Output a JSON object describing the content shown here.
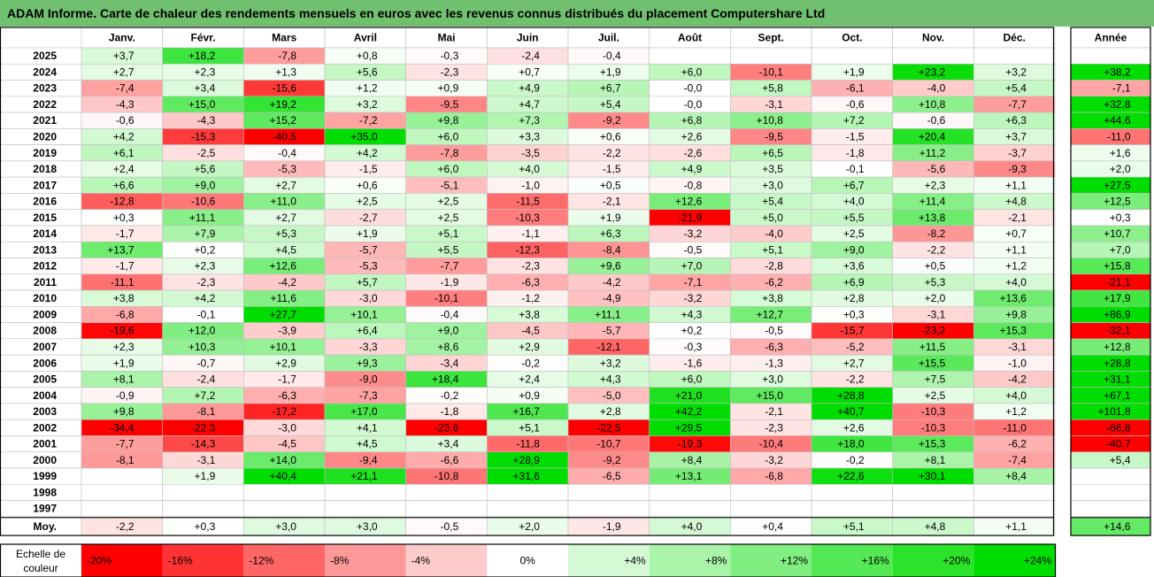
{
  "title": "ADAM Informe. Carte de chaleur des rendements mensuels en euros avec les revenus connus distribués du placement Computershare Ltd",
  "chart_data": {
    "type": "heatmap",
    "columns": [
      "Janv.",
      "Févr.",
      "Mars",
      "Avril",
      "Mai",
      "Juin",
      "Juil.",
      "Août",
      "Sept.",
      "Oct.",
      "Nov.",
      "Déc."
    ],
    "year_header": "Année",
    "rows": [
      {
        "label": "2025",
        "values": [
          3.7,
          18.2,
          -7.8,
          0.8,
          -0.3,
          -2.4,
          -0.4,
          null,
          null,
          null,
          null,
          null
        ],
        "year": null
      },
      {
        "label": "2024",
        "values": [
          2.7,
          2.3,
          1.3,
          5.6,
          -2.3,
          0.7,
          1.9,
          6.0,
          -10.1,
          1.9,
          23.2,
          3.2
        ],
        "year": 38.2
      },
      {
        "label": "2023",
        "values": [
          -7.4,
          3.4,
          -15.6,
          1.2,
          0.9,
          4.9,
          6.7,
          -0.0,
          5.8,
          -6.1,
          -4.0,
          5.4
        ],
        "year": -7.1
      },
      {
        "label": "2022",
        "values": [
          -4.3,
          15.0,
          19.2,
          3.2,
          -9.5,
          4.7,
          5.4,
          -0.0,
          -3.1,
          -0.6,
          10.8,
          -7.7
        ],
        "year": 32.8
      },
      {
        "label": "2021",
        "values": [
          -0.6,
          -4.3,
          15.2,
          -7.2,
          9.8,
          7.3,
          -9.2,
          6.8,
          10.8,
          7.2,
          -0.6,
          6.3
        ],
        "year": 44.6
      },
      {
        "label": "2020",
        "values": [
          4.2,
          -15.3,
          -40.5,
          35.0,
          6.0,
          3.3,
          0.6,
          2.6,
          -9.5,
          -1.5,
          20.4,
          3.7
        ],
        "year": -11.0
      },
      {
        "label": "2019",
        "values": [
          6.1,
          -2.5,
          -0.4,
          4.2,
          -7.8,
          -3.5,
          -2.2,
          -2.6,
          6.5,
          -1.8,
          11.2,
          -3.7
        ],
        "year": 1.6
      },
      {
        "label": "2018",
        "values": [
          2.4,
          5.6,
          -5.3,
          -1.5,
          6.0,
          4.0,
          -1.5,
          4.9,
          3.5,
          -0.1,
          -5.6,
          -9.3
        ],
        "year": 2.0
      },
      {
        "label": "2017",
        "values": [
          6.6,
          9.0,
          2.7,
          0.6,
          -5.1,
          -1.0,
          0.5,
          -0.8,
          3.0,
          6.7,
          2.3,
          1.1
        ],
        "year": 27.5
      },
      {
        "label": "2016",
        "values": [
          -12.8,
          -10.6,
          11.0,
          2.5,
          2.5,
          -11.5,
          -2.1,
          12.6,
          5.4,
          4.0,
          11.4,
          4.8
        ],
        "year": 12.5
      },
      {
        "label": "2015",
        "values": [
          0.3,
          11.1,
          2.7,
          -2.7,
          2.5,
          -10.3,
          1.9,
          -21.9,
          5.0,
          5.5,
          13.8,
          -2.1
        ],
        "year": 0.3
      },
      {
        "label": "2014",
        "values": [
          -1.7,
          7.9,
          5.3,
          1.9,
          5.1,
          -1.1,
          6.3,
          -3.2,
          -4.0,
          2.5,
          -8.2,
          0.7
        ],
        "year": 10.7
      },
      {
        "label": "2013",
        "values": [
          13.7,
          0.2,
          4.5,
          -5.7,
          5.5,
          -12.3,
          -8.4,
          -0.5,
          5.1,
          9.0,
          -2.2,
          1.1
        ],
        "year": 7.0
      },
      {
        "label": "2012",
        "values": [
          -1.7,
          2.3,
          12.6,
          -5.3,
          -7.7,
          -2.3,
          9.6,
          7.0,
          -2.8,
          3.6,
          0.5,
          1.2
        ],
        "year": 15.8
      },
      {
        "label": "2011",
        "values": [
          -11.1,
          -2.3,
          -4.2,
          5.7,
          -1.9,
          -6.3,
          -4.2,
          -7.1,
          -6.2,
          6.9,
          5.3,
          4.0
        ],
        "year": -21.1
      },
      {
        "label": "2010",
        "values": [
          3.8,
          4.2,
          11.6,
          -3.0,
          -10.1,
          -1.2,
          -4.9,
          -3.2,
          3.8,
          2.8,
          2.0,
          13.6
        ],
        "year": 17.9
      },
      {
        "label": "2009",
        "values": [
          -6.8,
          -0.1,
          27.7,
          10.1,
          -0.4,
          3.8,
          11.1,
          4.3,
          12.7,
          0.3,
          -3.1,
          9.8
        ],
        "year": 86.9
      },
      {
        "label": "2008",
        "values": [
          -19.6,
          12.0,
          -3.9,
          6.4,
          9.0,
          -4.5,
          -5.7,
          0.2,
          -0.5,
          -15.7,
          -23.2,
          15.3
        ],
        "year": -32.1
      },
      {
        "label": "2007",
        "values": [
          2.3,
          10.3,
          10.1,
          -3.3,
          8.6,
          2.9,
          -12.1,
          -0.3,
          -6.3,
          -5.2,
          11.5,
          -3.1
        ],
        "year": 12.8
      },
      {
        "label": "2006",
        "values": [
          1.9,
          -0.7,
          2.9,
          9.3,
          -3.4,
          -0.2,
          3.2,
          -1.6,
          -1.3,
          2.7,
          15.5,
          -1.0
        ],
        "year": 28.8
      },
      {
        "label": "2005",
        "values": [
          8.1,
          -2.4,
          -1.7,
          -9.0,
          18.4,
          2.4,
          4.3,
          6.0,
          3.0,
          -2.2,
          7.5,
          -4.2
        ],
        "year": 31.1
      },
      {
        "label": "2004",
        "values": [
          -0.9,
          7.2,
          -6.3,
          -7.3,
          -0.2,
          0.9,
          -5.0,
          21.0,
          15.0,
          28.8,
          2.5,
          4.0
        ],
        "year": 67.1
      },
      {
        "label": "2003",
        "values": [
          9.8,
          -8.1,
          -17.2,
          17.0,
          -1.8,
          16.7,
          2.8,
          42.2,
          -2.1,
          40.7,
          -10.3,
          1.2
        ],
        "year": 101.8
      },
      {
        "label": "2002",
        "values": [
          -34.4,
          -22.3,
          -3.0,
          4.1,
          -23.6,
          5.1,
          -22.5,
          29.5,
          -2.3,
          2.6,
          -10.3,
          -11.0
        ],
        "year": -66.8
      },
      {
        "label": "2001",
        "values": [
          -7.7,
          -14.3,
          -4.5,
          4.5,
          3.4,
          -11.8,
          -10.7,
          -19.3,
          -10.4,
          18.0,
          15.3,
          -6.2
        ],
        "year": -40.7
      },
      {
        "label": "2000",
        "values": [
          -8.1,
          -3.1,
          14.0,
          -9.4,
          -6.6,
          28.9,
          -9.2,
          8.4,
          -3.2,
          -0.2,
          8.1,
          -7.4
        ],
        "year": 5.4
      },
      {
        "label": "1999",
        "values": [
          null,
          1.9,
          40.4,
          21.1,
          -10.8,
          31.6,
          -6.5,
          13.1,
          -6.8,
          22.6,
          30.1,
          8.4
        ],
        "year": null
      },
      {
        "label": "1998",
        "values": [
          null,
          null,
          null,
          null,
          null,
          null,
          null,
          null,
          null,
          null,
          null,
          null
        ],
        "year": null
      },
      {
        "label": "1997",
        "values": [
          null,
          null,
          null,
          null,
          null,
          null,
          null,
          null,
          null,
          null,
          null,
          null
        ],
        "year": null
      }
    ],
    "average": {
      "label": "Moy.",
      "values": [
        -2.2,
        0.3,
        3.0,
        3.0,
        -0.5,
        2.0,
        -1.9,
        4.0,
        0.4,
        5.1,
        4.8,
        1.1
      ],
      "year": 14.6
    },
    "scale": {
      "label_line1": "Echelle de",
      "label_line2": "couleur",
      "items": [
        {
          "label": "-20%",
          "value": -20
        },
        {
          "label": "-16%",
          "value": -16
        },
        {
          "label": "-12%",
          "value": -12
        },
        {
          "label": "-8%",
          "value": -8
        },
        {
          "label": "-4%",
          "value": -4
        },
        {
          "label": "0%",
          "value": 0
        },
        {
          "label": "+4%",
          "value": 4
        },
        {
          "label": "+8%",
          "value": 8
        },
        {
          "label": "+12%",
          "value": 12
        },
        {
          "label": "+16%",
          "value": 16
        },
        {
          "label": "+20%",
          "value": 20
        },
        {
          "label": "+24%",
          "value": 24
        }
      ]
    },
    "colors": {
      "negative": "#ff0000",
      "neutral": "#ffffff",
      "positive": "#00dd00",
      "grid": "#bfbfbf",
      "border": "#000000"
    },
    "color_limits": {
      "min": -20,
      "max": 24
    }
  }
}
